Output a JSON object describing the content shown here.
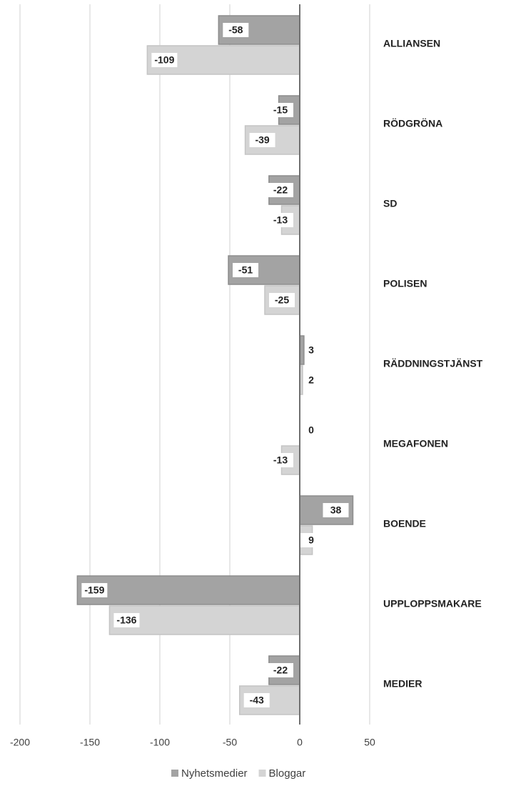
{
  "chart_data": {
    "type": "hbar",
    "categories": [
      "ALLIANSEN",
      "RÖDGRÖNA",
      "SD",
      "POLISEN",
      "RÄDDNINGSTJÄNST",
      "MEGAFONEN",
      "BOENDE",
      "UPPLOPPSMAKARE",
      "MEDIER"
    ],
    "series": [
      {
        "name": "Nyhetsmedier",
        "color": "#a3a3a3",
        "values": [
          -58,
          -15,
          -22,
          -51,
          3,
          0,
          38,
          -159,
          -22
        ]
      },
      {
        "name": "Bloggar",
        "color": "#d4d4d4",
        "values": [
          -109,
          -39,
          -13,
          -25,
          2,
          -13,
          9,
          -136,
          -43
        ]
      }
    ],
    "xlim": [
      -200,
      50
    ],
    "xticks": [
      -200,
      -150,
      -100,
      -50,
      0,
      50
    ],
    "grid": true,
    "legend": "bottom"
  }
}
